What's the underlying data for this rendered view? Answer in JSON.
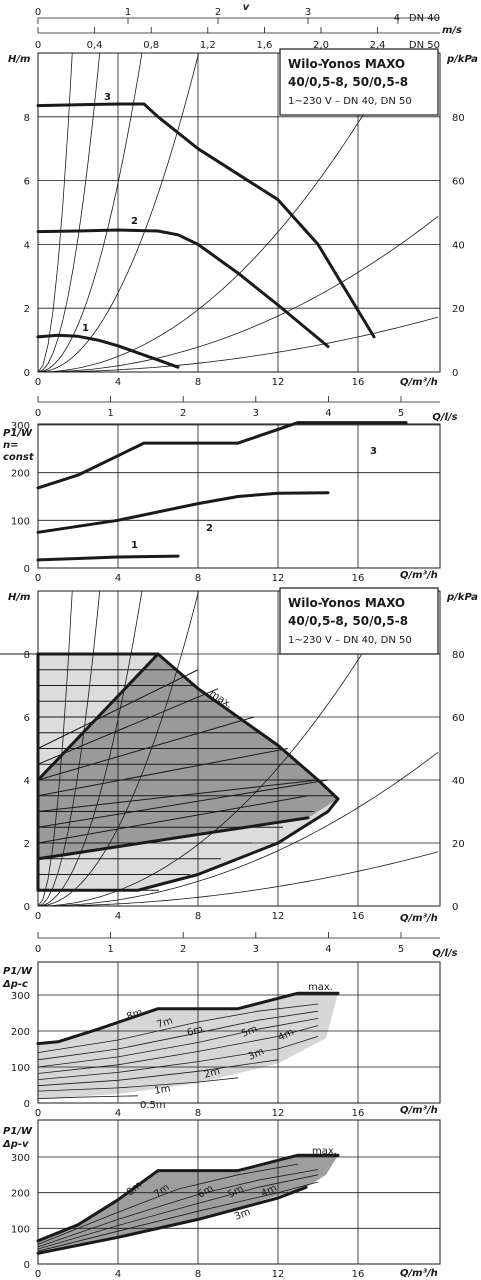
{
  "chart_data": [
    {
      "id": "top_scales",
      "type": "line",
      "velocity_label": "v",
      "velocity_unit": "m/s",
      "dn40_label": "DN 40",
      "dn50_label": "DN 50",
      "dn40_ticks": [
        0,
        1,
        2,
        3,
        4
      ],
      "dn50_ticks": [
        "0",
        "0,4",
        "0,8",
        "1,2",
        "1,6",
        "2,0",
        "2,4"
      ]
    },
    {
      "id": "chart1",
      "type": "line",
      "title": "Wilo-Yonos MAXO",
      "title2": "40/0,5-8, 50/0,5-8",
      "subtitle": "1~230 V – DN 40, DN 50",
      "ylabel": "H/m",
      "ylabel_right": "p/kPa",
      "xlabel": "Q/m³/h",
      "xlim": [
        0,
        20
      ],
      "ylim": [
        0,
        10
      ],
      "x_ticks": [
        0,
        4,
        8,
        12,
        16
      ],
      "y_ticks": [
        0,
        2,
        4,
        6,
        8
      ],
      "y_right_ticks": [
        0,
        20,
        40,
        60,
        80
      ],
      "series": [
        {
          "name": "1",
          "x": [
            0,
            1,
            2,
            3,
            4,
            5,
            6,
            7
          ],
          "y": [
            1.1,
            1.15,
            1.12,
            1.0,
            0.82,
            0.6,
            0.38,
            0.15
          ]
        },
        {
          "name": "2",
          "x": [
            0,
            2,
            4,
            6,
            7,
            8,
            10,
            12,
            14.5
          ],
          "y": [
            4.4,
            4.42,
            4.45,
            4.42,
            4.3,
            4.0,
            3.1,
            2.1,
            0.8
          ]
        },
        {
          "name": "3",
          "x": [
            0,
            2,
            4,
            5.3,
            6,
            8,
            10,
            12,
            14,
            16.8
          ],
          "y": [
            8.35,
            8.38,
            8.4,
            8.4,
            8.0,
            7.0,
            6.2,
            5.4,
            4.0,
            1.1
          ]
        }
      ],
      "system_curves_k": [
        3.4,
        1.05,
        0.37,
        0.155,
        0.0305,
        0.0122,
        0.0043
      ]
    },
    {
      "id": "flow_scale_1",
      "type": "line",
      "xlabel": "Q/l/s",
      "ticks": [
        0,
        1,
        2,
        3,
        4,
        5
      ]
    },
    {
      "id": "chart2",
      "type": "line",
      "ylabel": "P1/W",
      "ylabel2": "n=",
      "ylabel3": "const",
      "xlabel": "Q/m³/h",
      "xlim": [
        0,
        20
      ],
      "ylim": [
        0,
        350
      ],
      "x_ticks": [
        0,
        4,
        8,
        12,
        16
      ],
      "y_ticks": [
        0,
        100,
        200,
        300
      ],
      "series": [
        {
          "name": "1",
          "x": [
            0,
            2,
            4,
            7
          ],
          "y": [
            17,
            20,
            23,
            25
          ]
        },
        {
          "name": "2",
          "x": [
            0,
            4,
            8,
            10,
            12,
            14.5
          ],
          "y": [
            75,
            100,
            135,
            150,
            157,
            158
          ]
        },
        {
          "name": "3",
          "x": [
            0,
            2,
            5.3,
            10,
            13,
            18.4
          ],
          "y": [
            168,
            195,
            262,
            262,
            305,
            305
          ]
        }
      ]
    },
    {
      "id": "chart3",
      "type": "area",
      "title": "Wilo-Yonos MAXO",
      "title2": "40/0,5-8, 50/0,5-8",
      "subtitle": "1~230 V – DN 40, DN 50",
      "ylabel": "H/m",
      "ylabel_right": "p/kPa",
      "xlabel": "Q/m³/h",
      "xlim": [
        0,
        20
      ],
      "ylim": [
        0,
        10
      ],
      "x_ticks": [
        0,
        4,
        8,
        12,
        16
      ],
      "y_ticks": [
        0,
        2,
        4,
        6,
        8
      ],
      "y_right_ticks": [
        0,
        20,
        40,
        60,
        80
      ],
      "max_label": "max.",
      "max_curve": {
        "x": [
          0,
          6,
          8,
          10,
          12,
          14,
          15
        ],
        "y": [
          8.0,
          8.0,
          6.9,
          6.0,
          5.1,
          4.0,
          3.4
        ]
      },
      "dp_c_levels": [
        0.5,
        1,
        1.5,
        2,
        2.5,
        3,
        3.5,
        4,
        4.5,
        5,
        5.5,
        6,
        6.5,
        7,
        7.5,
        8
      ],
      "dp_v_lines": [
        [
          0,
          1.5,
          13.5,
          2.8
        ],
        [
          0,
          2.0,
          13.5,
          3.5
        ],
        [
          0,
          2.5,
          14.5,
          4.0
        ],
        [
          0,
          3.0,
          14.0,
          4.0
        ],
        [
          0,
          3.5,
          12.5,
          5.0
        ],
        [
          0,
          4.0,
          10.8,
          6.0
        ],
        [
          0,
          4.5,
          9.0,
          6.9
        ],
        [
          0,
          5.0,
          8.0,
          7.5
        ]
      ],
      "system_curves_k": [
        3.4,
        1.05,
        0.37,
        0.155,
        0.0305,
        0.0122,
        0.0043
      ]
    },
    {
      "id": "flow_scale_2",
      "type": "line",
      "xlabel": "Q/l/s",
      "ticks": [
        0,
        1,
        2,
        3,
        4,
        5
      ]
    },
    {
      "id": "chart4",
      "type": "line",
      "ylabel": "P1/W",
      "ylabel2": "Δp-c",
      "xlabel": "Q/m³/h",
      "xlim": [
        0,
        20
      ],
      "ylim": [
        0,
        350
      ],
      "x_ticks": [
        0,
        4,
        8,
        12,
        16
      ],
      "y_ticks": [
        0,
        100,
        200,
        300
      ],
      "max_label": "max.",
      "series": [
        {
          "name": "8m",
          "x": [
            0,
            1,
            3,
            6,
            10,
            13,
            15
          ],
          "y": [
            165,
            170,
            205,
            262,
            262,
            305,
            305
          ]
        },
        {
          "name": "7m",
          "x": [
            0,
            4,
            8,
            11,
            14
          ],
          "y": [
            140,
            175,
            225,
            255,
            275
          ]
        },
        {
          "name": "6m",
          "x": [
            0,
            4,
            8,
            11,
            14
          ],
          "y": [
            120,
            150,
            195,
            230,
            255
          ]
        },
        {
          "name": "5m",
          "x": [
            0,
            4,
            8,
            11,
            14
          ],
          "y": [
            100,
            128,
            168,
            205,
            235
          ]
        },
        {
          "name": "4m",
          "x": [
            0,
            4,
            8,
            12,
            14
          ],
          "y": [
            82,
            106,
            143,
            185,
            215
          ]
        },
        {
          "name": "3m",
          "x": [
            0,
            4,
            8,
            12,
            14
          ],
          "y": [
            65,
            85,
            115,
            150,
            185
          ]
        },
        {
          "name": "2m",
          "x": [
            0,
            4,
            8,
            12
          ],
          "y": [
            48,
            63,
            88,
            120
          ]
        },
        {
          "name": "1m",
          "x": [
            0,
            4,
            8,
            10
          ],
          "y": [
            33,
            42,
            58,
            70
          ]
        },
        {
          "name": "0.5m",
          "x": [
            0,
            2,
            5
          ],
          "y": [
            12,
            16,
            20
          ]
        }
      ]
    },
    {
      "id": "chart5",
      "type": "line",
      "ylabel": "P1/W",
      "ylabel2": "Δp-v",
      "xlabel": "Q/m³/h",
      "xlim": [
        0,
        20
      ],
      "ylim": [
        0,
        350
      ],
      "x_ticks": [
        0,
        4,
        8,
        12,
        16
      ],
      "y_ticks": [
        0,
        100,
        200,
        300
      ],
      "max_label": "max.",
      "series": [
        {
          "name": "8m",
          "x": [
            0,
            2,
            4,
            6,
            10,
            13,
            15
          ],
          "y": [
            65,
            110,
            180,
            262,
            262,
            305,
            305
          ]
        },
        {
          "name": "7m",
          "x": [
            0,
            4,
            7,
            10,
            13
          ],
          "y": [
            55,
            145,
            210,
            250,
            280
          ]
        },
        {
          "name": "6m",
          "x": [
            0,
            4,
            8,
            11,
            14
          ],
          "y": [
            48,
            125,
            195,
            235,
            265
          ]
        },
        {
          "name": "5m",
          "x": [
            0,
            4,
            8,
            11,
            14
          ],
          "y": [
            42,
            108,
            170,
            215,
            250
          ]
        },
        {
          "name": "4m",
          "x": [
            0,
            4,
            8,
            12,
            14
          ],
          "y": [
            36,
            92,
            148,
            200,
            230
          ]
        },
        {
          "name": "3m",
          "x": [
            0,
            4,
            8,
            12,
            13.4
          ],
          "y": [
            30,
            75,
            125,
            185,
            215
          ]
        }
      ]
    }
  ]
}
